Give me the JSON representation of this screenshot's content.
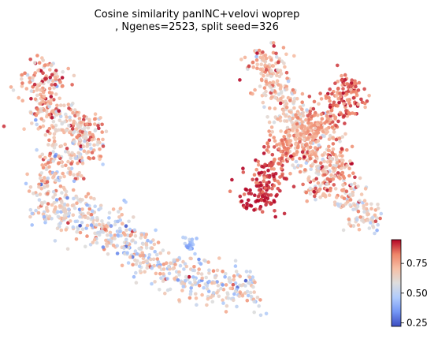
{
  "chart_data": {
    "type": "scatter",
    "title_line1": "Cosine similarity panINC+velovi woprep",
    "title_line2": ", Ngenes=2523, split seed=326",
    "colormap": "coolwarm",
    "colorbar": {
      "range": [
        0.22,
        0.95
      ],
      "ticks": [
        0.25,
        0.5,
        0.75
      ],
      "tick_labels": [
        "0.25",
        "0.50",
        "0.75"
      ],
      "stops": [
        "#3b4cc0",
        "#7396f5",
        "#b0cbfc",
        "#dddddd",
        "#f6bfa6",
        "#ee8468",
        "#b40426"
      ]
    },
    "grid": false,
    "axes_visible": false,
    "clusters": [
      {
        "name": "",
        "path": [
          [
            67,
            78
          ],
          [
            55,
            100
          ],
          [
            48,
            130
          ],
          [
            62,
            155
          ],
          [
            88,
            165
          ],
          [
            108,
            152
          ],
          [
            118,
            172
          ],
          [
            104,
            192
          ],
          [
            80,
            205
          ],
          [
            60,
            222
          ],
          [
            58,
            250
          ],
          [
            75,
            272
          ],
          [
            105,
            278
          ],
          [
            128,
            278
          ],
          [
            142,
            292
          ],
          [
            158,
            305
          ],
          [
            175,
            318
          ],
          [
            195,
            332
          ],
          [
            215,
            342
          ],
          [
            240,
            352
          ],
          [
            262,
            362
          ],
          [
            282,
            368
          ],
          [
            305,
            368
          ],
          [
            325,
            362
          ]
        ],
        "width": 34,
        "count": 1050,
        "mean": 0.67,
        "spread": 0.12,
        "trend": [
          0.74,
          0.7,
          0.64,
          0.6,
          0.6
        ]
      },
      {
        "name": "",
        "path": [
          [
            235,
            303
          ],
          [
            243,
            307
          ],
          [
            240,
            318
          ]
        ],
        "width": 8,
        "count": 22,
        "mean": 0.45,
        "spread": 0.05,
        "trend": [
          0.45,
          0.45
        ]
      },
      {
        "name": "",
        "path": [
          [
            330,
            65
          ],
          [
            340,
            92
          ],
          [
            355,
            120
          ],
          [
            372,
            148
          ],
          [
            385,
            172
          ],
          [
            396,
            195
          ],
          [
            402,
            222
          ],
          [
            410,
            250
          ]
        ],
        "width": 30,
        "count": 420,
        "mean": 0.72,
        "spread": 0.11,
        "trend": [
          0.74,
          0.68,
          0.7,
          0.76
        ]
      },
      {
        "name": "",
        "path": [
          [
            322,
            268
          ],
          [
            332,
            240
          ],
          [
            345,
            212
          ],
          [
            358,
            190
          ],
          [
            380,
            172
          ],
          [
            405,
            160
          ],
          [
            428,
            140
          ],
          [
            442,
            118
          ],
          [
            452,
            104
          ]
        ],
        "width": 30,
        "count": 480,
        "mean": 0.82,
        "spread": 0.07,
        "trend": [
          0.95,
          0.91,
          0.86,
          0.78,
          0.75,
          0.85,
          0.85
        ]
      },
      {
        "name": "",
        "path": [
          [
            418,
            175
          ],
          [
            428,
            205
          ],
          [
            438,
            238
          ],
          [
            448,
            265
          ],
          [
            465,
            280
          ],
          [
            480,
            280
          ]
        ],
        "width": 24,
        "count": 200,
        "mean": 0.74,
        "spread": 0.1,
        "trend": [
          0.74,
          0.78,
          0.7,
          0.62
        ]
      }
    ]
  }
}
